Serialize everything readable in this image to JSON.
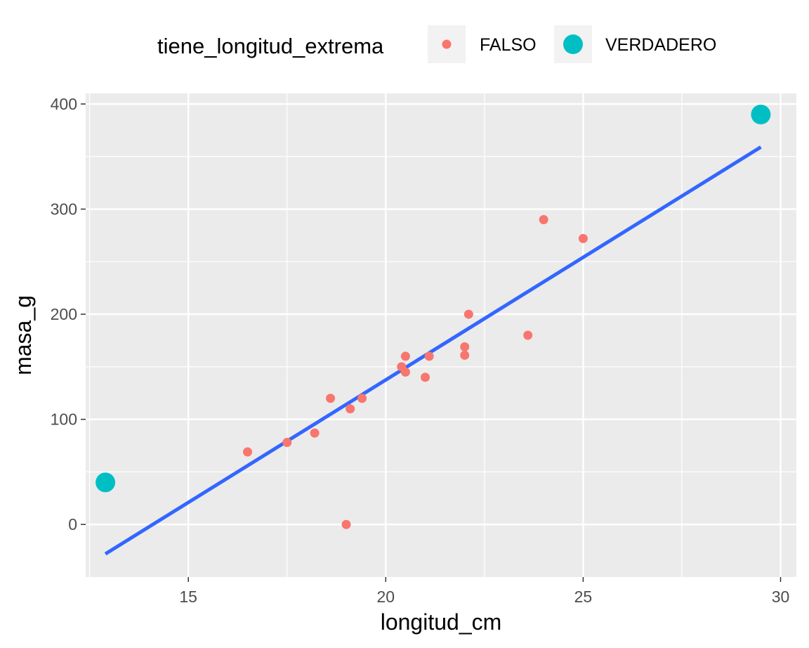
{
  "chart_data": {
    "type": "scatter",
    "xlabel": "longitud_cm",
    "ylabel": "masa_g",
    "xlim": [
      12.4,
      30.4
    ],
    "ylim": [
      -50,
      410
    ],
    "x_ticks": [
      15,
      20,
      25,
      30
    ],
    "y_ticks": [
      0,
      100,
      200,
      300,
      400
    ],
    "x_tick_labels": [
      "15",
      "20",
      "25",
      "30"
    ],
    "y_tick_labels": [
      "0",
      "100",
      "200",
      "300",
      "400"
    ],
    "grid": true,
    "legend": {
      "title": "tiene_longitud_extrema",
      "position": "top",
      "entries": [
        {
          "label": "FALSO",
          "color": "#F8766D"
        },
        {
          "label": "VERDADERO",
          "color": "#00BFC4"
        }
      ]
    },
    "series": [
      {
        "name": "FALSO",
        "color": "#F8766D",
        "points": [
          {
            "x": 16.5,
            "y": 69
          },
          {
            "x": 17.5,
            "y": 78
          },
          {
            "x": 18.2,
            "y": 87
          },
          {
            "x": 18.6,
            "y": 120
          },
          {
            "x": 19.0,
            "y": 0
          },
          {
            "x": 19.1,
            "y": 110
          },
          {
            "x": 19.4,
            "y": 120
          },
          {
            "x": 20.4,
            "y": 150
          },
          {
            "x": 20.5,
            "y": 145
          },
          {
            "x": 20.5,
            "y": 160
          },
          {
            "x": 21.0,
            "y": 140
          },
          {
            "x": 21.1,
            "y": 160
          },
          {
            "x": 22.0,
            "y": 161
          },
          {
            "x": 22.0,
            "y": 169
          },
          {
            "x": 22.1,
            "y": 200
          },
          {
            "x": 23.6,
            "y": 180
          },
          {
            "x": 24.0,
            "y": 290
          },
          {
            "x": 25.0,
            "y": 272
          }
        ]
      },
      {
        "name": "VERDADERO",
        "color": "#00BFC4",
        "points": [
          {
            "x": 12.9,
            "y": 40
          },
          {
            "x": 29.5,
            "y": 390
          }
        ]
      }
    ],
    "trend_line": {
      "color": "#3366FF",
      "from": {
        "x": 12.9,
        "y": -28
      },
      "to": {
        "x": 29.5,
        "y": 359
      }
    },
    "colors": {
      "panel_background": "#EBEBEB",
      "grid_major": "#FFFFFF",
      "axis_tick": "#333333",
      "tick_label": "#4D4D4D"
    }
  }
}
